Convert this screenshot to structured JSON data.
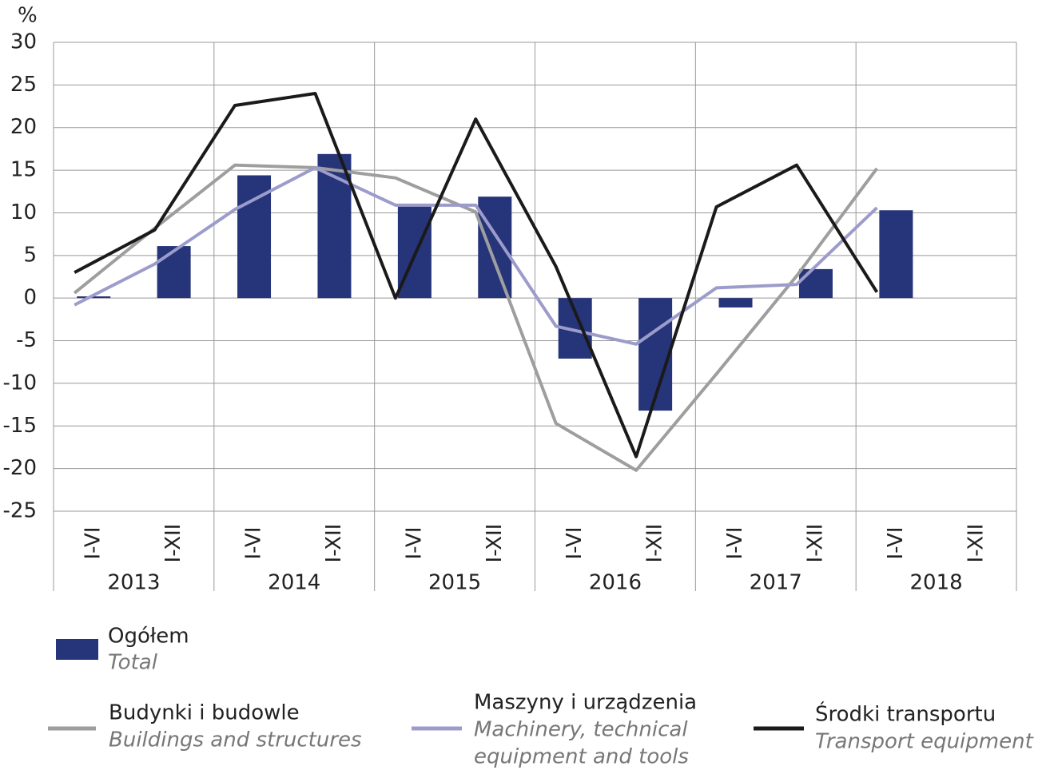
{
  "chart_data": {
    "type": "bar-line",
    "y_label": "%",
    "categories": [
      "I-VI",
      "I-XII",
      "I-VI",
      "I-XII",
      "I-VI",
      "I-XII",
      "I-VI",
      "I-XII",
      "I-VI",
      "I-XII",
      "I-VI",
      "I-XII"
    ],
    "groups": [
      "2013",
      "2014",
      "2015",
      "2016",
      "2017",
      "2018"
    ],
    "ylim": [
      -25,
      30
    ],
    "yticks": [
      30,
      25,
      20,
      15,
      10,
      5,
      0,
      -5,
      -10,
      -15,
      -20,
      -25
    ],
    "grid": true,
    "bars": {
      "name": "Ogółem",
      "name_en": [
        "Total"
      ],
      "color": "#263479",
      "values": [
        0.2,
        6.1,
        14.4,
        16.9,
        10.8,
        11.9,
        -7.1,
        -13.2,
        -1.1,
        3.4,
        10.3,
        null
      ]
    },
    "series": [
      {
        "name": "Budynki i budowle",
        "name_en": [
          "Buildings and structures"
        ],
        "color": "#9e9e9e",
        "values": [
          0.6,
          8.2,
          15.6,
          15.3,
          14.1,
          10.1,
          -14.7,
          -20.2,
          -8.9,
          2.6,
          15.2,
          null
        ]
      },
      {
        "name": "Maszyny i urządzenia",
        "name_en": [
          "Machinery, technical",
          "equipment and tools"
        ],
        "color": "#9c9ccc",
        "values": [
          -0.8,
          4.0,
          10.4,
          15.3,
          10.9,
          10.9,
          -3.3,
          -5.4,
          1.2,
          1.6,
          10.6,
          null
        ]
      },
      {
        "name": "Środki transportu",
        "name_en": [
          "Transport equipment"
        ],
        "color": "#1a1a1a",
        "values": [
          3.0,
          8.0,
          22.6,
          24.0,
          0,
          21.0,
          3.7,
          -18.6,
          10.7,
          15.6,
          0.7,
          null
        ]
      }
    ]
  }
}
